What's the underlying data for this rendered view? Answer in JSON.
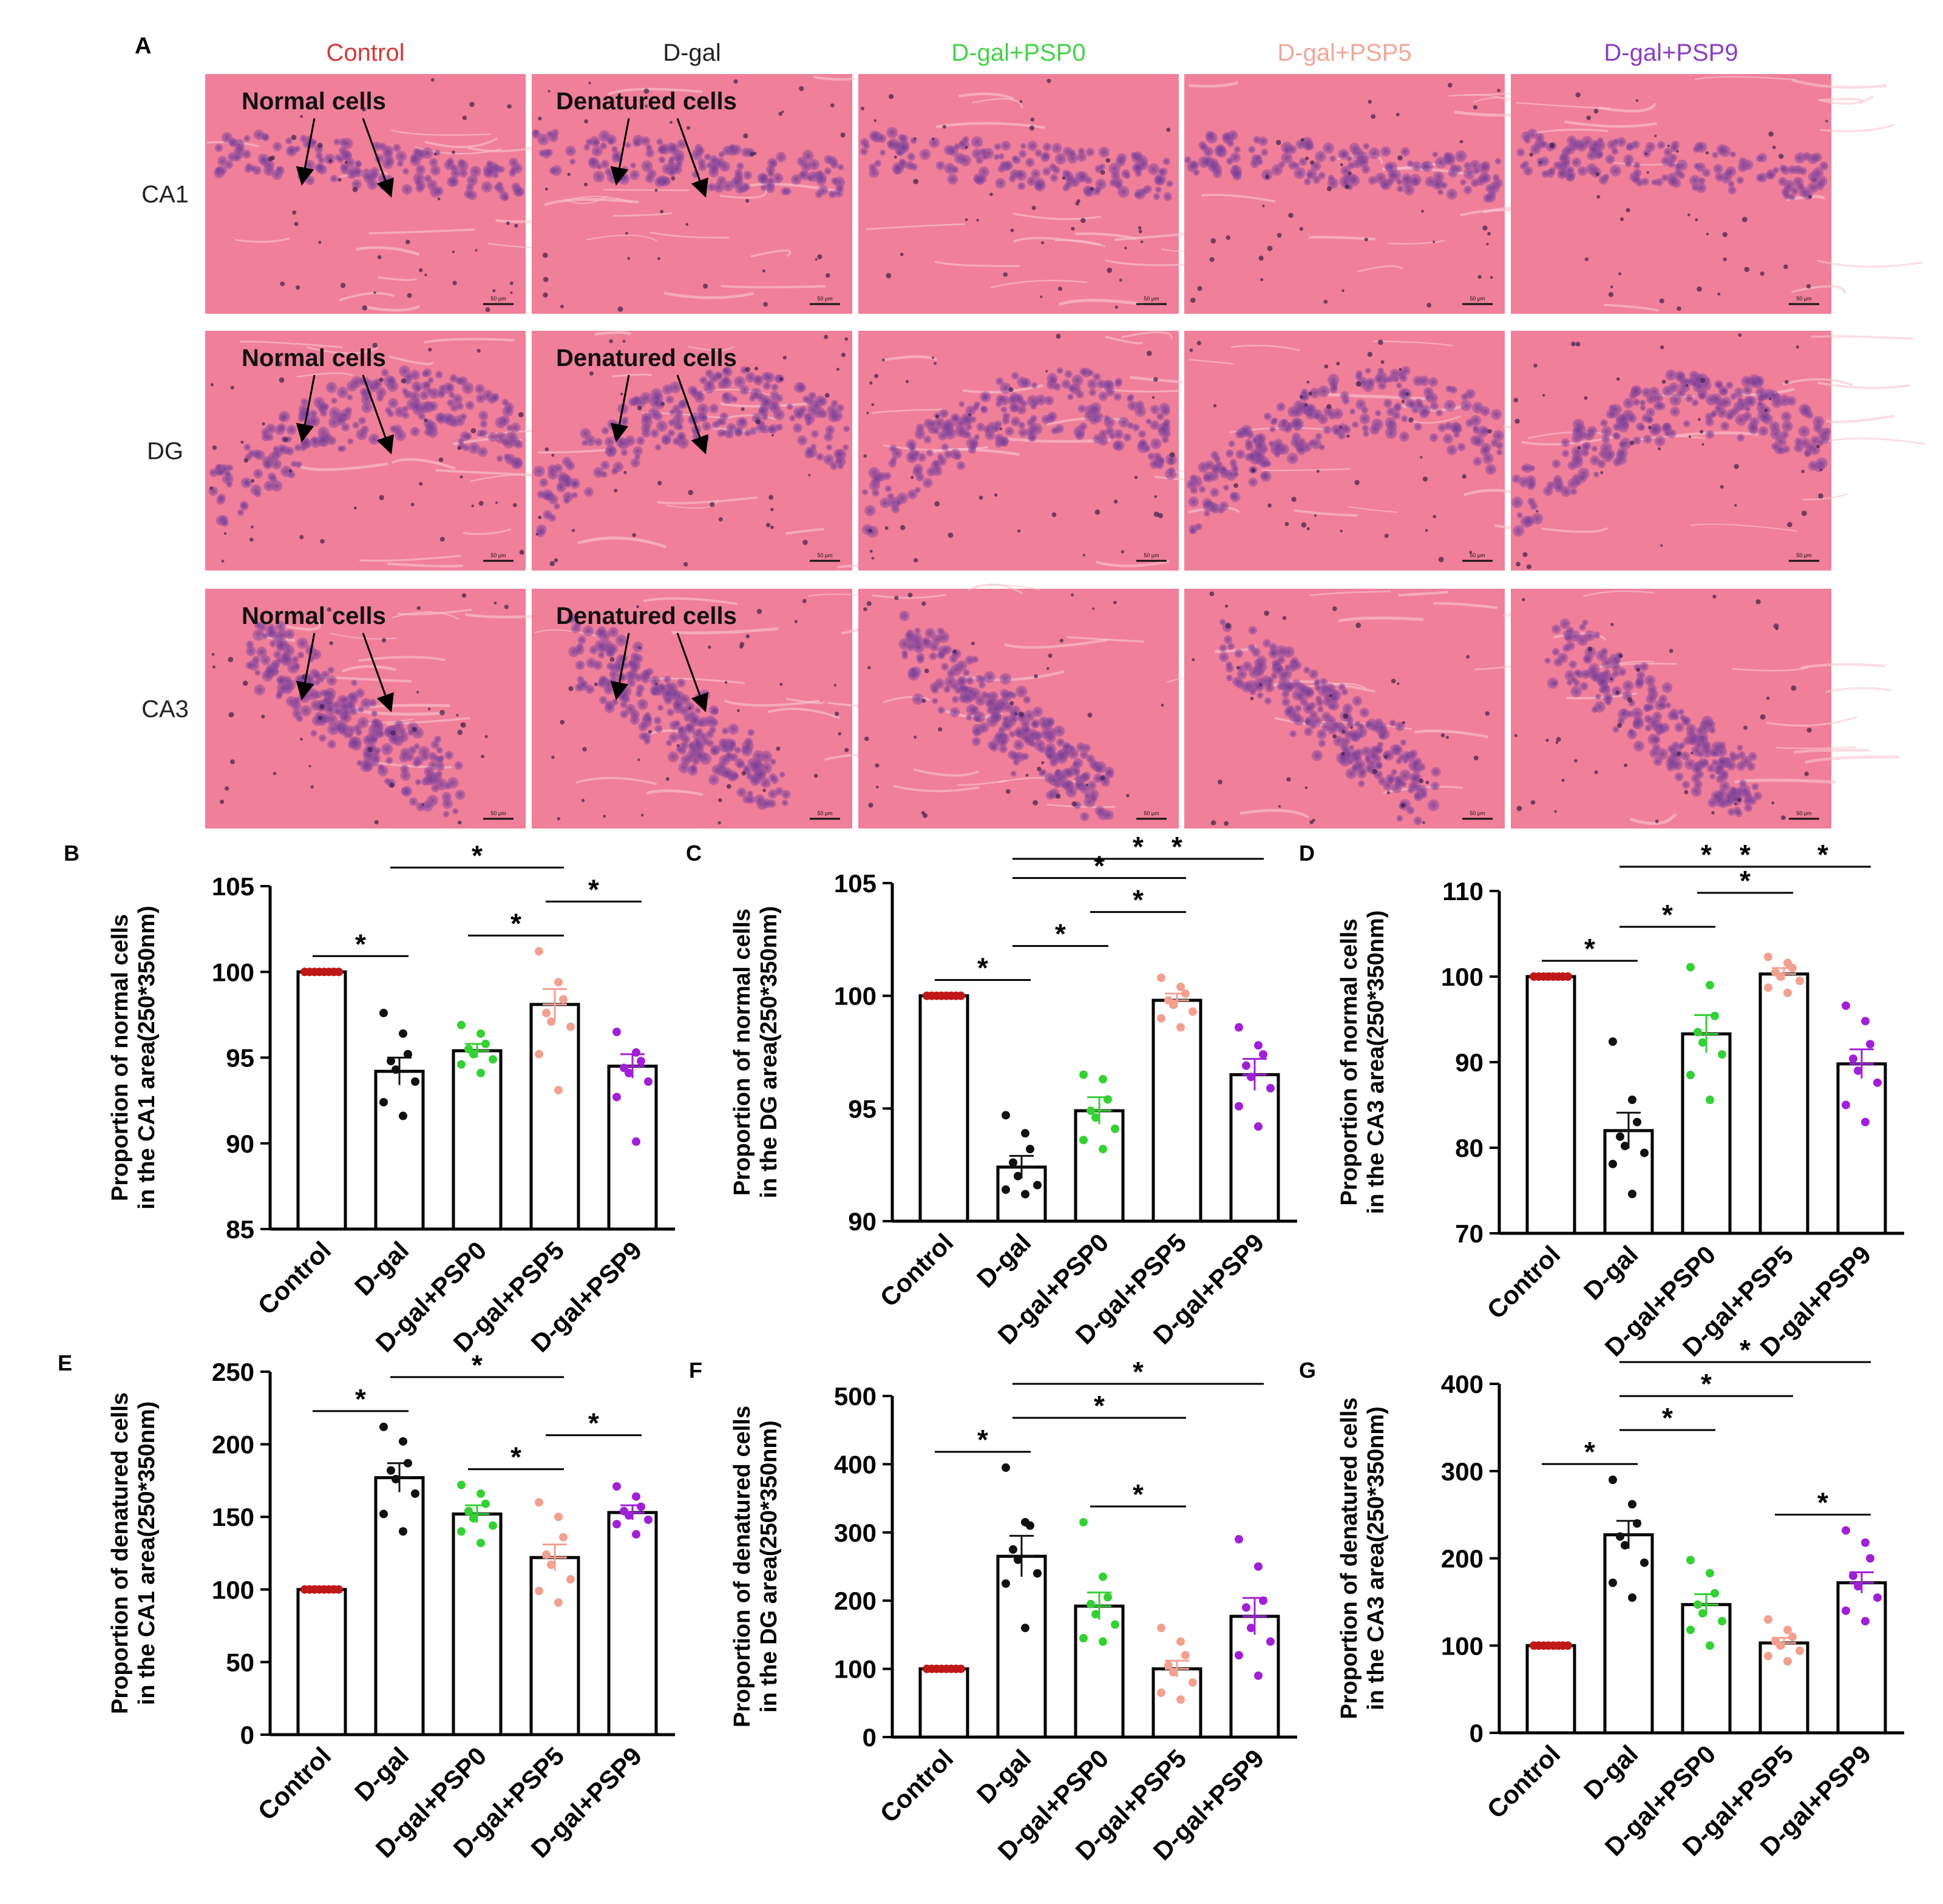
{
  "panel_a": {
    "letter": "A",
    "groups": [
      {
        "label": "Control",
        "color": "#d43a3a"
      },
      {
        "label": "D-gal",
        "color": "#222222"
      },
      {
        "label": "D-gal+PSP0",
        "color": "#46d24a"
      },
      {
        "label": "D-gal+PSP5",
        "color": "#f0a89a"
      },
      {
        "label": "D-gal+PSP9",
        "color": "#8a3fc8"
      }
    ],
    "rows": [
      "CA1",
      "DG",
      "CA3"
    ],
    "annotations": {
      "normal": "Normal cells",
      "denatured": "Denatured cells"
    },
    "scale_bar": "50 μm"
  },
  "colors": {
    "control": "#c01818",
    "dgal": "#111111",
    "psp0": "#34d134",
    "psp5": "#f2a090",
    "psp9": "#a020d8",
    "tissue": "#f07f9a",
    "nuclei": "#7a3f9a"
  },
  "chart_data": [
    {
      "panel": "B",
      "type": "bar",
      "categories": [
        "Control",
        "D-gal",
        "D-gal+PSP0",
        "D-gal+PSP5",
        "D-gal+PSP9"
      ],
      "values": [
        100,
        94.2,
        95.4,
        98.1,
        94.5
      ],
      "sem": [
        0,
        0.8,
        0.4,
        0.9,
        0.7
      ],
      "points": [
        [
          100,
          100,
          100,
          100,
          100,
          100,
          100,
          100
        ],
        [
          97.6,
          96.4,
          95.2,
          94.8,
          94.3,
          93.6,
          92.4,
          91.6
        ],
        [
          96.9,
          96.4,
          95.8,
          95.5,
          95.2,
          94.9,
          94.6,
          94.1
        ],
        [
          101.2,
          99.4,
          98.4,
          97.6,
          97.1,
          96.8,
          95.2,
          93.1
        ],
        [
          96.5,
          95.3,
          94.8,
          94.4,
          94.1,
          93.6,
          92.7,
          90.1
        ]
      ],
      "ylabel": [
        "Proportion of normal cells",
        "in the CA1 area(250*350nm)"
      ],
      "ylim": [
        85,
        105
      ],
      "ticks": [
        85,
        90,
        95,
        100,
        105
      ],
      "significance": [
        [
          0,
          1,
          "*"
        ],
        [
          1,
          3,
          "*"
        ],
        [
          2,
          3,
          "*"
        ],
        [
          3,
          4,
          "*"
        ]
      ]
    },
    {
      "panel": "C",
      "type": "bar",
      "categories": [
        "Control",
        "D-gal",
        "D-gal+PSP0",
        "D-gal+PSP5",
        "D-gal+PSP9"
      ],
      "values": [
        100,
        92.4,
        94.9,
        99.8,
        96.5
      ],
      "sem": [
        0,
        0.5,
        0.6,
        0.3,
        0.7
      ],
      "points": [
        [
          100,
          100,
          100,
          100,
          100,
          100,
          100,
          100
        ],
        [
          94.7,
          93.9,
          93.2,
          92.6,
          92.0,
          91.6,
          91.4,
          91.2
        ],
        [
          96.5,
          96.3,
          95.4,
          94.9,
          94.6,
          94.1,
          93.6,
          93.2
        ],
        [
          100.8,
          100.4,
          100.1,
          99.8,
          99.6,
          99.3,
          99.0,
          98.6
        ],
        [
          98.6,
          97.8,
          97.4,
          96.9,
          96.4,
          95.9,
          95.1,
          94.2
        ]
      ],
      "ylabel": [
        "Proportion of normal cells",
        "in the DG area(250*350nm)"
      ],
      "ylim": [
        90,
        105
      ],
      "ticks": [
        90,
        95,
        100,
        105
      ],
      "significance": [
        [
          0,
          1,
          "*"
        ],
        [
          1,
          2,
          "*"
        ],
        [
          1,
          3,
          "*"
        ],
        [
          1,
          4,
          "*"
        ],
        [
          2,
          3,
          "*"
        ],
        [
          2,
          4,
          "*"
        ]
      ]
    },
    {
      "panel": "D",
      "type": "bar",
      "categories": [
        "Control",
        "D-gal",
        "D-gal+PSP0",
        "D-gal+PSP5",
        "D-gal+PSP9"
      ],
      "values": [
        100,
        82,
        93.3,
        100.3,
        89.8
      ],
      "sem": [
        0,
        2.1,
        2.2,
        0.7,
        1.7
      ],
      "points": [
        [
          100,
          100,
          100,
          100,
          100,
          100,
          100,
          100
        ],
        [
          92.4,
          85.6,
          83.0,
          81.3,
          80.2,
          79.4,
          78.1,
          74.6
        ],
        [
          101.1,
          99.0,
          95.4,
          93.5,
          92.3,
          90.9,
          88.5,
          85.6
        ],
        [
          102.3,
          101.6,
          101.0,
          100.5,
          100.0,
          99.5,
          98.7,
          98.1
        ],
        [
          96.6,
          94.8,
          92.1,
          90.4,
          89.0,
          87.6,
          85.0,
          83.0
        ]
      ],
      "ylabel": [
        "Proportion of normal cells",
        "in the CA3 area(250*350nm)"
      ],
      "ylim": [
        70,
        110
      ],
      "ticks": [
        70,
        80,
        90,
        100,
        110
      ],
      "significance": [
        [
          0,
          1,
          "*"
        ],
        [
          1,
          2,
          "*"
        ],
        [
          1,
          3,
          "*"
        ],
        [
          1,
          4,
          "*"
        ],
        [
          2,
          3,
          "*"
        ],
        [
          3,
          4,
          "*"
        ]
      ]
    },
    {
      "panel": "E",
      "type": "bar",
      "categories": [
        "Control",
        "D-gal",
        "D-gal+PSP0",
        "D-gal+PSP5",
        "D-gal+PSP9"
      ],
      "values": [
        100,
        177,
        152,
        122,
        153
      ],
      "sem": [
        0,
        10,
        6,
        9,
        5
      ],
      "points": [
        [
          100,
          100,
          100,
          100,
          100,
          100,
          100,
          100
        ],
        [
          212,
          202,
          187,
          182,
          176,
          166,
          152,
          140
        ],
        [
          172,
          166,
          159,
          154,
          149,
          144,
          140,
          132
        ],
        [
          160,
          150,
          136,
          124,
          117,
          107,
          99,
          91
        ],
        [
          171,
          164,
          157,
          154,
          151,
          148,
          145,
          138
        ]
      ],
      "ylabel": [
        "Proportion of denatured cells",
        "in the CA1 area(250*350nm)"
      ],
      "ylim": [
        0,
        250
      ],
      "ticks": [
        0,
        50,
        100,
        150,
        200,
        250
      ],
      "significance": [
        [
          0,
          1,
          "*"
        ],
        [
          1,
          3,
          "*"
        ],
        [
          2,
          3,
          "*"
        ],
        [
          3,
          4,
          "*"
        ]
      ]
    },
    {
      "panel": "F",
      "type": "bar",
      "categories": [
        "Control",
        "D-gal",
        "D-gal+PSP0",
        "D-gal+PSP5",
        "D-gal+PSP9"
      ],
      "values": [
        100,
        265,
        192,
        100,
        177
      ],
      "sem": [
        0,
        30,
        20,
        12,
        27
      ],
      "points": [
        [
          100,
          100,
          100,
          100,
          100,
          100,
          100,
          100
        ],
        [
          395,
          315,
          310,
          275,
          260,
          240,
          225,
          160
        ],
        [
          315,
          235,
          205,
          195,
          180,
          165,
          145,
          140
        ],
        [
          160,
          140,
          120,
          105,
          95,
          80,
          65,
          55
        ],
        [
          290,
          250,
          200,
          190,
          160,
          140,
          120,
          90
        ]
      ],
      "ylabel": [
        "Proportion of denatured cells",
        "in the DG area(250*350nm)"
      ],
      "ylim": [
        0,
        500
      ],
      "ticks": [
        0,
        100,
        200,
        300,
        400,
        500
      ],
      "significance": [
        [
          0,
          1,
          "*"
        ],
        [
          1,
          3,
          "*"
        ],
        [
          1,
          4,
          "*"
        ],
        [
          2,
          3,
          "*"
        ]
      ]
    },
    {
      "panel": "G",
      "type": "bar",
      "categories": [
        "Control",
        "D-gal",
        "D-gal+PSP0",
        "D-gal+PSP5",
        "D-gal+PSP9"
      ],
      "values": [
        100,
        227,
        147,
        103,
        172
      ],
      "sem": [
        0,
        16,
        12,
        6,
        12
      ],
      "points": [
        [
          100,
          100,
          100,
          100,
          100,
          100,
          100,
          100
        ],
        [
          290,
          262,
          240,
          225,
          215,
          195,
          172,
          155
        ],
        [
          198,
          183,
          160,
          147,
          137,
          128,
          118,
          100
        ],
        [
          130,
          118,
          110,
          105,
          100,
          94,
          88,
          82
        ],
        [
          232,
          218,
          200,
          180,
          168,
          155,
          140,
          128
        ]
      ],
      "ylabel": [
        "Proportion of denatured cells",
        "in the CA3 area(250*350nm)"
      ],
      "ylim": [
        0,
        400
      ],
      "ticks": [
        0,
        100,
        200,
        300,
        400
      ],
      "significance": [
        [
          0,
          1,
          "*"
        ],
        [
          1,
          2,
          "*"
        ],
        [
          1,
          3,
          "*"
        ],
        [
          1,
          4,
          "*"
        ],
        [
          3,
          4,
          "*"
        ]
      ]
    }
  ]
}
